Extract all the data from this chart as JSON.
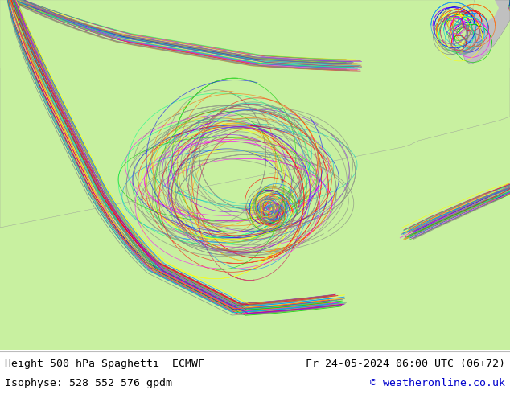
{
  "title_left": "Height 500 hPa Spaghetti  ECMWF",
  "title_right": "Fr 24-05-2024 06:00 UTC (06+72)",
  "subtitle_left": "Isophyse: 528 552 576 gpdm",
  "subtitle_right": "© weatheronline.co.uk",
  "bg_color": "#e8e8e8",
  "land_color": "#c8f0a0",
  "gray_land_color": "#c0c0c0",
  "footer_bg": "#ffffff",
  "footer_text_color": "#000000",
  "copyright_color": "#0000cc",
  "figsize": [
    6.34,
    4.9
  ],
  "dpi": 100,
  "line_colors": [
    "#808080",
    "#ff0000",
    "#00cc00",
    "#0000ff",
    "#ff00ff",
    "#00cccc",
    "#ffaa00",
    "#8800ff",
    "#ff6600",
    "#0088ff",
    "#ffff00",
    "#cc0055",
    "#00ff88"
  ],
  "gray_line_color": "#808080"
}
